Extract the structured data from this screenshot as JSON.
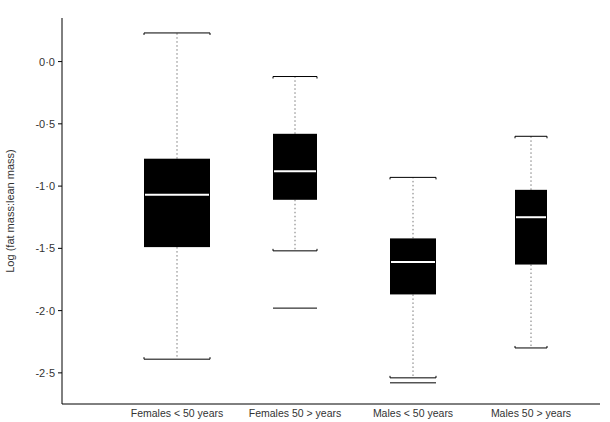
{
  "chart_data": {
    "type": "box",
    "y_label": "Log (fat mass:lean mass)",
    "categories": [
      "Females < 50 years",
      "Females 50 > years",
      "Males < 50 years",
      "Males 50 > years"
    ],
    "whisker_high": [
      0.23,
      -0.12,
      -0.93,
      -0.6
    ],
    "q3": [
      -0.78,
      -0.58,
      -1.42,
      -1.03
    ],
    "median": [
      -1.07,
      -0.88,
      -1.61,
      -1.25
    ],
    "q1": [
      -1.49,
      -1.11,
      -1.87,
      -1.63
    ],
    "whisker_low": [
      -2.39,
      -1.52,
      -2.54,
      -2.3
    ],
    "outliers": [
      [],
      [
        -1.98
      ],
      [
        -2.58
      ],
      []
    ],
    "color": "#000000",
    "ylim": [
      -2.75,
      0.35
    ],
    "yticks": [
      {
        "value": 0,
        "label": "0·0"
      },
      {
        "value": -0.5,
        "label": "-0·5"
      },
      {
        "value": -1,
        "label": "-1·0"
      },
      {
        "value": -1.5,
        "label": "-1·5"
      },
      {
        "value": -2,
        "label": "-2·0"
      },
      {
        "value": -2.5,
        "label": "-2·5"
      }
    ],
    "grid": false
  }
}
